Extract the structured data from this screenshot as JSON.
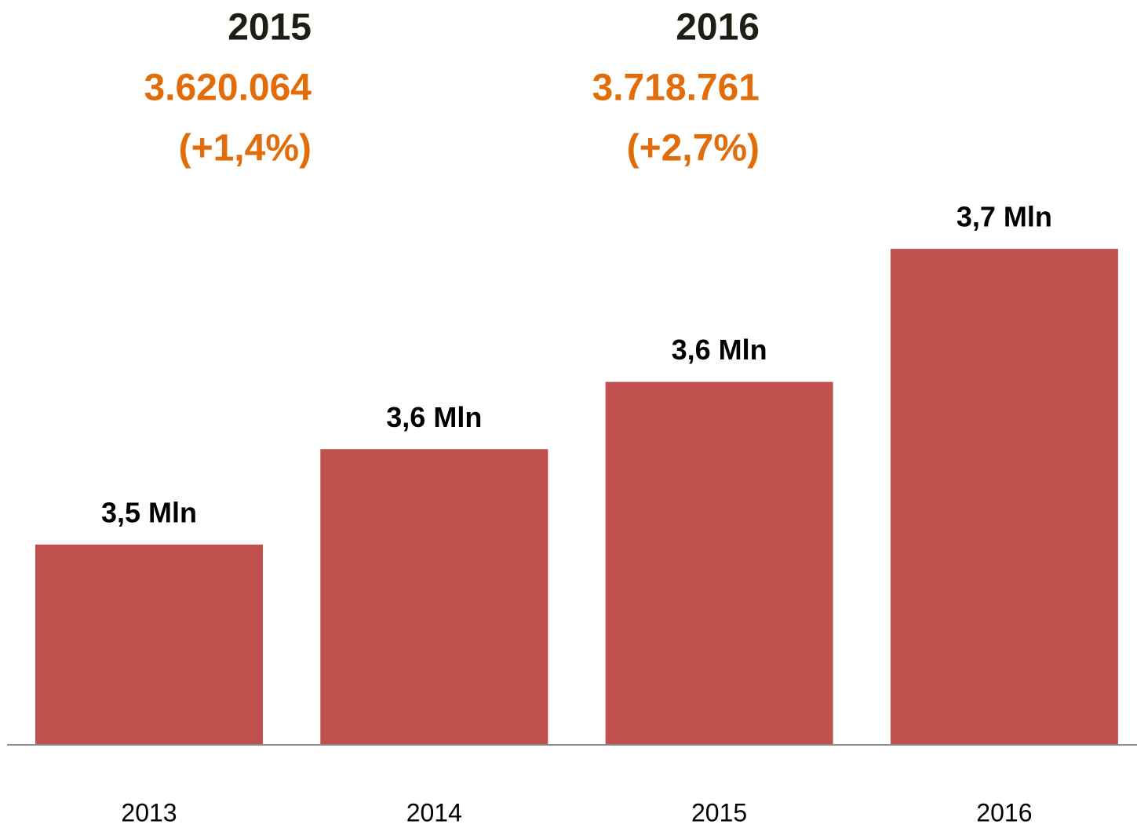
{
  "chart_data": {
    "type": "bar",
    "annotations": [
      {
        "year": "2015",
        "value": "3.620.064",
        "change": "(+1,4%)"
      },
      {
        "year": "2016",
        "value": "3.718.761",
        "change": "(+2,7%)"
      }
    ],
    "categories": [
      "2013",
      "2014",
      "2015",
      "2016"
    ],
    "values": [
      3.499,
      3.57,
      3.62,
      3.719
    ],
    "value_labels": [
      "3,5 Mln",
      "3,6 Mln",
      "3,6 Mln",
      "3,7 Mln"
    ],
    "color": "#c0504d",
    "ylim": [
      3.35,
      3.75
    ]
  }
}
